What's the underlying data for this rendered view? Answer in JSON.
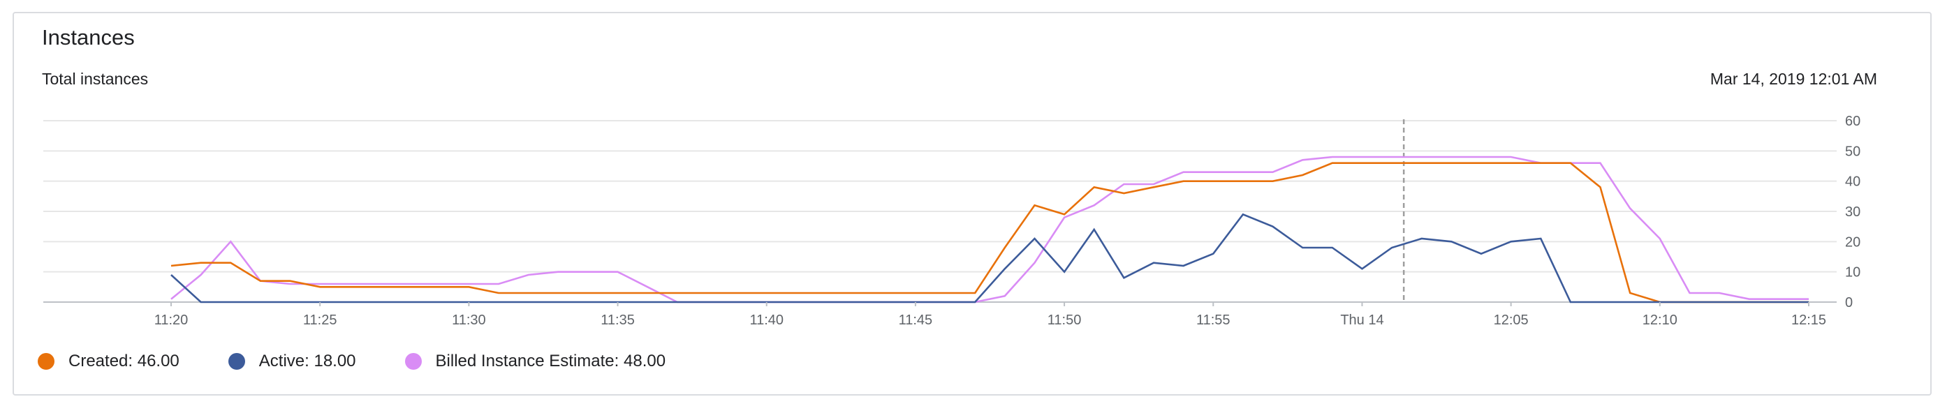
{
  "card": {
    "title": "Instances",
    "subtitle": "Total instances",
    "timestamp": "Mar 14, 2019 12:01 AM"
  },
  "legend": [
    {
      "label": "Created: 46.00",
      "color": "#e8710a"
    },
    {
      "label": "Active: 18.00",
      "color": "#3c5b9a"
    },
    {
      "label": "Billed Instance Estimate: 48.00",
      "color": "#d98cf5"
    }
  ],
  "chart_data": {
    "type": "line",
    "title": "Total instances",
    "xlabel": "",
    "ylabel": "",
    "ylim": [
      0,
      60
    ],
    "yticks": [
      0,
      10,
      20,
      30,
      40,
      50,
      60
    ],
    "xlim": [
      20,
      75
    ],
    "xticks": [
      {
        "x": 20,
        "label": "11:20"
      },
      {
        "x": 25,
        "label": "11:25"
      },
      {
        "x": 30,
        "label": "11:30"
      },
      {
        "x": 35,
        "label": "11:35"
      },
      {
        "x": 40,
        "label": "11:40"
      },
      {
        "x": 45,
        "label": "11:45"
      },
      {
        "x": 50,
        "label": "11:50"
      },
      {
        "x": 55,
        "label": "11:55"
      },
      {
        "x": 60,
        "label": "Thu 14"
      },
      {
        "x": 65,
        "label": "12:05"
      },
      {
        "x": 70,
        "label": "12:10"
      },
      {
        "x": 75,
        "label": "12:15"
      }
    ],
    "cursor_x": 61.4,
    "grid": true,
    "legend_position": "bottom-left",
    "series": [
      {
        "name": "Created",
        "color": "#e8710a",
        "points": [
          [
            20,
            12
          ],
          [
            21,
            13
          ],
          [
            22,
            13
          ],
          [
            23,
            7
          ],
          [
            24,
            7
          ],
          [
            25,
            5
          ],
          [
            26,
            5
          ],
          [
            27,
            5
          ],
          [
            28,
            5
          ],
          [
            29,
            5
          ],
          [
            30,
            5
          ],
          [
            31,
            3
          ],
          [
            32,
            3
          ],
          [
            33,
            3
          ],
          [
            34,
            3
          ],
          [
            35,
            3
          ],
          [
            36,
            3
          ],
          [
            37,
            3
          ],
          [
            38,
            3
          ],
          [
            39,
            3
          ],
          [
            40,
            3
          ],
          [
            41,
            3
          ],
          [
            42,
            3
          ],
          [
            43,
            3
          ],
          [
            44,
            3
          ],
          [
            45,
            3
          ],
          [
            46,
            3
          ],
          [
            47,
            3
          ],
          [
            48,
            18
          ],
          [
            49,
            32
          ],
          [
            50,
            29
          ],
          [
            51,
            38
          ],
          [
            52,
            36
          ],
          [
            53,
            38
          ],
          [
            54,
            40
          ],
          [
            55,
            40
          ],
          [
            56,
            40
          ],
          [
            57,
            40
          ],
          [
            58,
            42
          ],
          [
            59,
            46
          ],
          [
            60,
            46
          ],
          [
            61,
            46
          ],
          [
            62,
            46
          ],
          [
            63,
            46
          ],
          [
            64,
            46
          ],
          [
            65,
            46
          ],
          [
            66,
            46
          ],
          [
            67,
            46
          ],
          [
            68,
            38
          ],
          [
            69,
            3
          ],
          [
            70,
            0
          ],
          [
            71,
            0
          ],
          [
            72,
            0
          ],
          [
            73,
            0
          ],
          [
            74,
            0
          ],
          [
            75,
            0
          ]
        ]
      },
      {
        "name": "Active",
        "color": "#3c5b9a",
        "points": [
          [
            20,
            9
          ],
          [
            21,
            0
          ],
          [
            22,
            0
          ],
          [
            23,
            0
          ],
          [
            24,
            0
          ],
          [
            25,
            0
          ],
          [
            26,
            0
          ],
          [
            27,
            0
          ],
          [
            28,
            0
          ],
          [
            29,
            0
          ],
          [
            30,
            0
          ],
          [
            31,
            0
          ],
          [
            32,
            0
          ],
          [
            33,
            0
          ],
          [
            34,
            0
          ],
          [
            35,
            0
          ],
          [
            36,
            0
          ],
          [
            37,
            0
          ],
          [
            38,
            0
          ],
          [
            39,
            0
          ],
          [
            40,
            0
          ],
          [
            41,
            0
          ],
          [
            42,
            0
          ],
          [
            43,
            0
          ],
          [
            44,
            0
          ],
          [
            45,
            0
          ],
          [
            46,
            0
          ],
          [
            47,
            0
          ],
          [
            48,
            11
          ],
          [
            49,
            21
          ],
          [
            50,
            10
          ],
          [
            51,
            24
          ],
          [
            52,
            8
          ],
          [
            53,
            13
          ],
          [
            54,
            12
          ],
          [
            55,
            16
          ],
          [
            56,
            29
          ],
          [
            57,
            25
          ],
          [
            58,
            18
          ],
          [
            59,
            18
          ],
          [
            60,
            11
          ],
          [
            61,
            18
          ],
          [
            62,
            21
          ],
          [
            63,
            20
          ],
          [
            64,
            16
          ],
          [
            65,
            20
          ],
          [
            66,
            21
          ],
          [
            67,
            0
          ],
          [
            68,
            0
          ],
          [
            69,
            0
          ],
          [
            70,
            0
          ],
          [
            71,
            0
          ],
          [
            72,
            0
          ],
          [
            73,
            0
          ],
          [
            74,
            0
          ],
          [
            75,
            0
          ]
        ]
      },
      {
        "name": "Billed Instance Estimate",
        "color": "#d98cf5",
        "points": [
          [
            20,
            1
          ],
          [
            21,
            9
          ],
          [
            22,
            20
          ],
          [
            23,
            7
          ],
          [
            24,
            6
          ],
          [
            25,
            6
          ],
          [
            26,
            6
          ],
          [
            27,
            6
          ],
          [
            28,
            6
          ],
          [
            29,
            6
          ],
          [
            30,
            6
          ],
          [
            31,
            6
          ],
          [
            32,
            9
          ],
          [
            33,
            10
          ],
          [
            34,
            10
          ],
          [
            35,
            10
          ],
          [
            36,
            5
          ],
          [
            37,
            0
          ],
          [
            38,
            0
          ],
          [
            39,
            0
          ],
          [
            40,
            0
          ],
          [
            41,
            0
          ],
          [
            42,
            0
          ],
          [
            43,
            0
          ],
          [
            44,
            0
          ],
          [
            45,
            0
          ],
          [
            46,
            0
          ],
          [
            47,
            0
          ],
          [
            48,
            2
          ],
          [
            49,
            13
          ],
          [
            50,
            28
          ],
          [
            51,
            32
          ],
          [
            52,
            39
          ],
          [
            53,
            39
          ],
          [
            54,
            43
          ],
          [
            55,
            43
          ],
          [
            56,
            43
          ],
          [
            57,
            43
          ],
          [
            58,
            47
          ],
          [
            59,
            48
          ],
          [
            60,
            48
          ],
          [
            61,
            48
          ],
          [
            62,
            48
          ],
          [
            63,
            48
          ],
          [
            64,
            48
          ],
          [
            65,
            48
          ],
          [
            66,
            46
          ],
          [
            67,
            46
          ],
          [
            68,
            46
          ],
          [
            69,
            31
          ],
          [
            70,
            21
          ],
          [
            71,
            3
          ],
          [
            72,
            3
          ],
          [
            73,
            1
          ],
          [
            74,
            1
          ],
          [
            75,
            1
          ]
        ]
      }
    ]
  }
}
